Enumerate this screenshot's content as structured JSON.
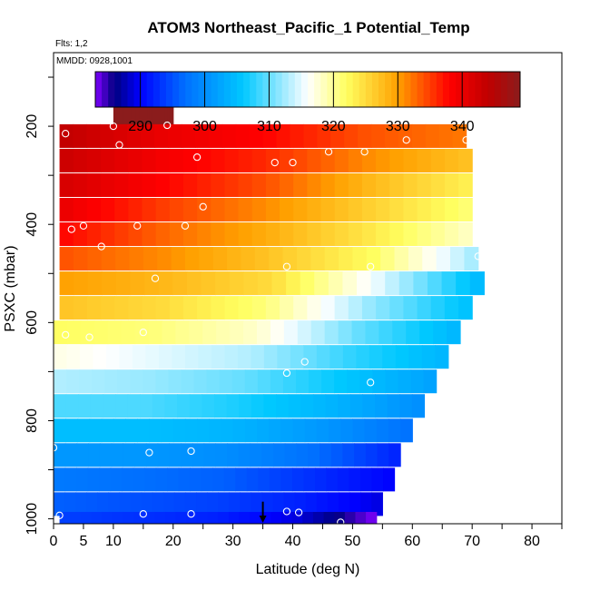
{
  "chart_data": {
    "type": "heatmap",
    "title": "ATOM3 Northeast_Pacific_1 Potential_Temp",
    "flights_note": "Flts: 1,2",
    "date_note": "MMDD: 0928,1001",
    "xlabel": "Latitude (deg N)",
    "ylabel": "PSXC (mbar)",
    "xlim": [
      0,
      85
    ],
    "ylim": [
      1010,
      50
    ],
    "y_reversed": true,
    "x_ticks": [
      0,
      5,
      10,
      20,
      30,
      40,
      50,
      60,
      70,
      80
    ],
    "y_ticks": [
      200,
      400,
      600,
      800,
      1000
    ],
    "colorbar": {
      "range": [
        283,
        349
      ],
      "ticks": [
        290,
        300,
        310,
        320,
        330,
        340
      ],
      "section_edges": [
        283,
        290,
        300,
        310,
        320,
        330,
        340,
        349
      ],
      "colors": [
        "#7f00ff",
        "#00007f",
        "#0000ff",
        "#0070ff",
        "#00c8ff",
        "#ffffff",
        "#ffff60",
        "#ffa000",
        "#ff0000",
        "#c00000",
        "#8b1c1c"
      ],
      "color_stops": [
        283,
        286,
        290,
        297,
        306,
        316,
        322,
        330,
        338,
        344,
        349
      ]
    },
    "rows": [
      {
        "p": 180,
        "lat_min": 10,
        "lat_max": 20,
        "values": [
          349,
          349
        ]
      },
      {
        "p": 220,
        "lat_min": 1,
        "lat_max": 69,
        "values": [
          344,
          340,
          338,
          334,
          332
        ]
      },
      {
        "p": 270,
        "lat_min": 1,
        "lat_max": 70,
        "values": [
          343,
          339,
          336,
          331,
          327
        ]
      },
      {
        "p": 320,
        "lat_min": 1,
        "lat_max": 70,
        "values": [
          342,
          338,
          334,
          328,
          323
        ]
      },
      {
        "p": 370,
        "lat_min": 1,
        "lat_max": 70,
        "values": [
          340,
          335,
          331,
          326,
          321
        ]
      },
      {
        "p": 420,
        "lat_min": 1,
        "lat_max": 70,
        "values": [
          338,
          333,
          329,
          324,
          318
        ]
      },
      {
        "p": 470,
        "lat_min": 1,
        "lat_max": 71,
        "values": [
          334,
          331,
          327,
          322,
          312
        ]
      },
      {
        "p": 520,
        "lat_min": 1,
        "lat_max": 72,
        "values": [
          330,
          328,
          325,
          315,
          304
        ]
      },
      {
        "p": 570,
        "lat_min": 1,
        "lat_max": 70,
        "values": [
          327,
          325,
          321,
          312,
          305
        ]
      },
      {
        "p": 620,
        "lat_min": 0,
        "lat_max": 68,
        "values": [
          322,
          321,
          318,
          310,
          304
        ]
      },
      {
        "p": 670,
        "lat_min": 0,
        "lat_max": 66,
        "values": [
          317,
          315,
          313,
          308,
          304
        ]
      },
      {
        "p": 720,
        "lat_min": 0,
        "lat_max": 64,
        "values": [
          313,
          312,
          310,
          306,
          302
        ]
      },
      {
        "p": 770,
        "lat_min": 0,
        "lat_max": 62,
        "values": [
          309,
          309,
          307,
          304,
          300
        ]
      },
      {
        "p": 820,
        "lat_min": 0,
        "lat_max": 60,
        "values": [
          305,
          305,
          304,
          301,
          297
        ]
      },
      {
        "p": 870,
        "lat_min": 0,
        "lat_max": 58,
        "values": [
          301,
          301,
          300,
          297,
          292
        ]
      },
      {
        "p": 920,
        "lat_min": 0,
        "lat_max": 57,
        "values": [
          298,
          297,
          296,
          293,
          290
        ]
      },
      {
        "p": 970,
        "lat_min": 0,
        "lat_max": 55,
        "values": [
          296,
          295,
          294,
          292,
          289
        ]
      },
      {
        "p": 1010,
        "lat_min": 1,
        "lat_max": 54,
        "values": [
          294,
          293,
          292,
          289,
          283
        ]
      }
    ],
    "sample_points": [
      {
        "x": 2,
        "y": 215
      },
      {
        "x": 10,
        "y": 200
      },
      {
        "x": 11,
        "y": 238
      },
      {
        "x": 19,
        "y": 198
      },
      {
        "x": 24,
        "y": 263
      },
      {
        "x": 37,
        "y": 274
      },
      {
        "x": 40,
        "y": 274
      },
      {
        "x": 46,
        "y": 252
      },
      {
        "x": 52,
        "y": 252
      },
      {
        "x": 59,
        "y": 228
      },
      {
        "x": 69,
        "y": 228
      },
      {
        "x": 25,
        "y": 364
      },
      {
        "x": 3,
        "y": 410
      },
      {
        "x": 5,
        "y": 403
      },
      {
        "x": 14,
        "y": 403
      },
      {
        "x": 22,
        "y": 403
      },
      {
        "x": 8,
        "y": 445
      },
      {
        "x": 71,
        "y": 465
      },
      {
        "x": 39,
        "y": 486
      },
      {
        "x": 53,
        "y": 486
      },
      {
        "x": 17,
        "y": 510
      },
      {
        "x": 0,
        "y": 515
      },
      {
        "x": 2,
        "y": 625
      },
      {
        "x": 6,
        "y": 630
      },
      {
        "x": 15,
        "y": 620
      },
      {
        "x": 42,
        "y": 680
      },
      {
        "x": 39,
        "y": 703
      },
      {
        "x": 53,
        "y": 722
      },
      {
        "x": 0,
        "y": 855
      },
      {
        "x": 16,
        "y": 865
      },
      {
        "x": 23,
        "y": 862
      },
      {
        "x": 1,
        "y": 993
      },
      {
        "x": 15,
        "y": 990
      },
      {
        "x": 23,
        "y": 990
      },
      {
        "x": 39,
        "y": 985
      },
      {
        "x": 41,
        "y": 987
      },
      {
        "x": 48,
        "y": 1007
      }
    ],
    "marker": {
      "x": 35,
      "y": 965
    }
  }
}
